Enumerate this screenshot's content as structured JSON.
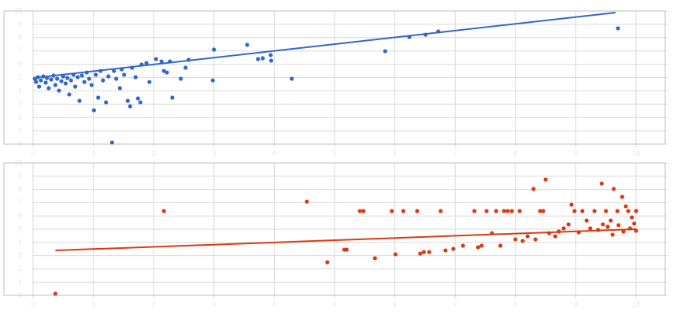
{
  "chart_data": [
    {
      "type": "scatter",
      "xlim": [
        0,
        10
      ],
      "ylim": [
        0,
        10
      ],
      "xticks": [
        0,
        1,
        2,
        3,
        4,
        5,
        6,
        7,
        8,
        9,
        10
      ],
      "yticks": [
        0,
        1,
        2,
        3,
        4,
        5,
        6,
        7,
        8,
        9,
        10
      ],
      "grid": true,
      "series": [
        {
          "color": "#3366cc",
          "x": [
            0.03,
            0.05,
            0.08,
            0.1,
            0.13,
            0.17,
            0.21,
            0.23,
            0.26,
            0.3,
            0.34,
            0.37,
            0.4,
            0.43,
            0.47,
            0.5,
            0.54,
            0.57,
            0.6,
            0.63,
            0.67,
            0.7,
            0.74,
            0.77,
            0.81,
            0.85,
            0.89,
            0.93,
            0.97,
            1.01,
            1.04,
            1.08,
            1.12,
            1.16,
            1.21,
            1.25,
            1.31,
            1.34,
            1.38,
            1.44,
            1.47,
            1.51,
            1.57,
            1.61,
            1.64,
            1.7,
            1.74,
            1.78,
            1.8,
            1.88,
            1.93,
            2.04,
            2.13,
            2.17,
            2.22,
            2.27,
            2.31,
            2.45,
            2.53,
            2.58,
            2.98,
            3.0,
            3.55,
            3.73,
            3.81,
            3.94,
            3.95,
            4.29,
            5.84,
            6.24,
            6.51,
            6.72,
            9.7
          ],
          "values": [
            4.91,
            4.67,
            5.03,
            4.32,
            4.79,
            5.09,
            4.62,
            4.97,
            4.2,
            4.85,
            5.15,
            4.44,
            4.91,
            4.02,
            4.73,
            5.09,
            4.56,
            4.97,
            3.73,
            4.79,
            5.21,
            4.32,
            5.03,
            3.25,
            5.15,
            4.67,
            5.38,
            4.91,
            4.44,
            2.54,
            5.21,
            3.49,
            5.5,
            4.79,
            3.14,
            5.09,
            0.12,
            5.5,
            4.91,
            4.2,
            5.62,
            5.21,
            3.25,
            2.84,
            5.74,
            5.03,
            3.43,
            3.14,
            5.98,
            6.09,
            4.67,
            6.39,
            6.21,
            5.5,
            5.38,
            6.21,
            3.49,
            4.91,
            5.74,
            6.33,
            4.79,
            7.1,
            7.46,
            6.39,
            6.45,
            6.69,
            6.27,
            4.91,
            6.98,
            8.05,
            8.22,
            8.46,
            8.7
          ]
        }
      ],
      "trendline": {
        "color": "#3366cc",
        "x": [
          0,
          9.66
        ],
        "values": [
          4.97,
          9.88
        ]
      }
    },
    {
      "type": "scatter",
      "xlim": [
        0,
        10
      ],
      "ylim": [
        0,
        10
      ],
      "xticks": [
        0,
        1,
        2,
        3,
        4,
        5,
        6,
        7,
        8,
        9,
        10
      ],
      "yticks": [
        0,
        1,
        2,
        3,
        4,
        5,
        6,
        7,
        8,
        9,
        10
      ],
      "grid": true,
      "series": [
        {
          "color": "#dc3912",
          "x": [
            0.37,
            2.17,
            4.54,
            4.88,
            5.16,
            5.2,
            5.42,
            5.48,
            5.67,
            5.95,
            6.01,
            6.14,
            6.37,
            6.42,
            6.48,
            6.57,
            6.76,
            6.84,
            6.97,
            7.13,
            7.32,
            7.38,
            7.44,
            7.52,
            7.61,
            7.68,
            7.75,
            7.81,
            7.87,
            7.94,
            8.0,
            8.07,
            8.12,
            8.2,
            8.3,
            8.33,
            8.41,
            8.46,
            8.5,
            8.56,
            8.66,
            8.72,
            8.8,
            8.88,
            8.93,
            8.98,
            9.05,
            9.11,
            9.18,
            9.24,
            9.31,
            9.37,
            9.43,
            9.45,
            9.5,
            9.53,
            9.58,
            9.61,
            9.63,
            9.69,
            9.71,
            9.77,
            9.79,
            9.83,
            9.87,
            9.9,
            9.93,
            9.97,
            10.0,
            10.0
          ],
          "values": [
            0.12,
            6.37,
            7.08,
            2.5,
            3.45,
            3.45,
            6.37,
            6.37,
            2.8,
            6.37,
            3.1,
            6.37,
            6.37,
            3.15,
            3.27,
            3.27,
            6.37,
            3.39,
            3.51,
            3.75,
            6.37,
            3.63,
            3.75,
            6.37,
            4.7,
            6.37,
            3.75,
            6.37,
            6.37,
            6.37,
            4.23,
            6.37,
            4.11,
            4.46,
            8.04,
            4.23,
            6.37,
            6.37,
            8.75,
            4.7,
            4.46,
            4.82,
            5.06,
            5.36,
            6.85,
            6.37,
            4.76,
            6.37,
            5.65,
            5.06,
            6.37,
            4.94,
            8.45,
            5.36,
            6.37,
            5.18,
            5.65,
            4.58,
            8.04,
            6.37,
            5.3,
            7.44,
            4.82,
            6.73,
            6.37,
            5.06,
            5.89,
            5.42,
            4.88,
            6.37
          ]
        }
      ],
      "trendline": {
        "color": "#dc3912",
        "x": [
          0.37,
          10.0
        ],
        "values": [
          3.39,
          5.0
        ]
      }
    }
  ]
}
